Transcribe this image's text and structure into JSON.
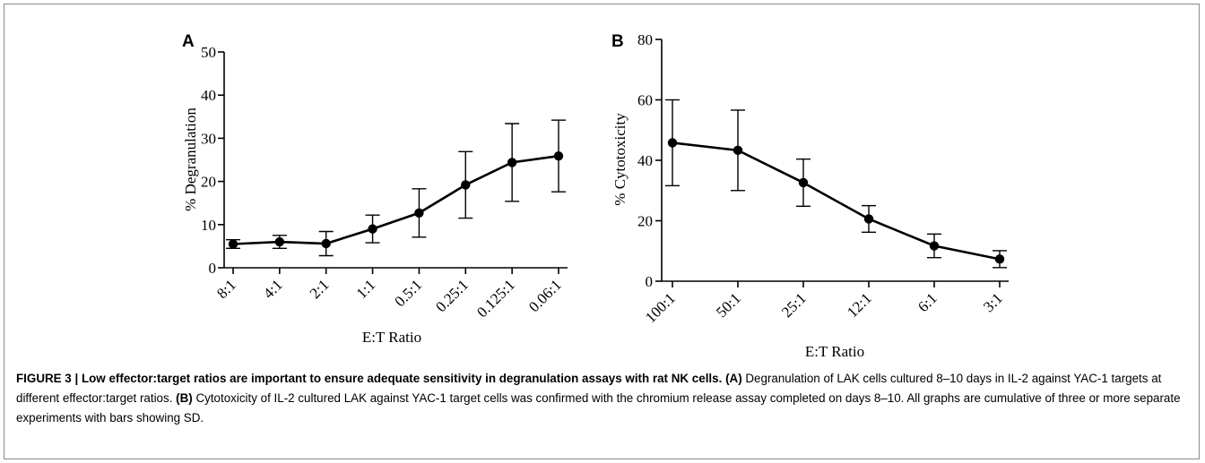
{
  "figure": {
    "label": "FIGURE 3",
    "separator": " | ",
    "title": "Low effector:target ratios are important to ensure adequate sensitivity in degranulation assays with rat NK cells",
    "panel_a_ref": "(A)",
    "panel_a_text": " Degranulation of LAK cells cultured 8–10 days in IL-2 against YAC-1 targets at different effector:target ratios. ",
    "panel_b_ref": "(B)",
    "panel_b_text": " Cytotoxicity of IL-2 cultured LAK against YAC-1 target cells was confirmed with the chromium release assay completed on days 8–10. All graphs are cumulative of three or more separate experiments with bars showing SD."
  },
  "chart_data": [
    {
      "panel": "A",
      "type": "line",
      "categories": [
        "8:1",
        "4:1",
        "2:1",
        "1:1",
        "0.5:1",
        "0.25:1",
        "0.125:1",
        "0.06:1"
      ],
      "values": [
        5.5,
        6.0,
        5.6,
        9.0,
        12.7,
        19.2,
        24.4,
        25.9
      ],
      "error_sd": [
        1.0,
        1.5,
        2.8,
        3.2,
        5.6,
        7.7,
        9.0,
        8.3
      ],
      "xlabel": "E:T Ratio",
      "ylabel": "% Degranulation",
      "ylim": [
        0,
        50
      ],
      "yticks": [
        0,
        10,
        20,
        30,
        40,
        50
      ],
      "grid": false
    },
    {
      "panel": "B",
      "type": "line",
      "categories": [
        "100:1",
        "50:1",
        "25:1",
        "12:1",
        "6:1",
        "3:1"
      ],
      "values": [
        45.8,
        43.3,
        32.6,
        20.6,
        11.7,
        7.3
      ],
      "error_sd": [
        14.2,
        13.3,
        7.8,
        4.4,
        3.9,
        2.8
      ],
      "xlabel": "E:T Ratio",
      "ylabel": "% Cytotoxicity",
      "ylim": [
        0,
        80
      ],
      "yticks": [
        0,
        20,
        40,
        60,
        80
      ],
      "grid": false
    }
  ]
}
